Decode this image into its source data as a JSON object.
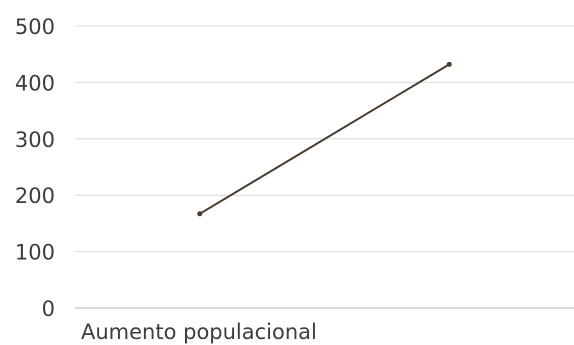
{
  "chart_data": {
    "type": "line",
    "title": "",
    "xlabel": "",
    "ylabel": "",
    "categories": [
      "Aumento populacional",
      ""
    ],
    "series": [
      {
        "values": [
          167,
          432
        ]
      }
    ],
    "ylim": [
      0,
      500
    ],
    "yticks": [
      "0",
      "100",
      "200",
      "300",
      "400",
      "500"
    ],
    "grid": true,
    "legend": "none",
    "colors": {
      "line": "#4a3b2a",
      "grid": "#dcdcdc",
      "axis": "#b5b5b5",
      "text": "#3d3d3d"
    }
  }
}
